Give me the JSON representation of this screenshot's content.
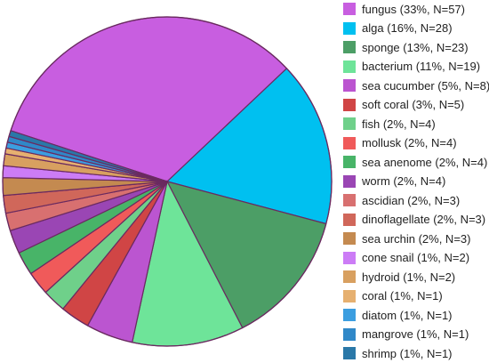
{
  "chart_data": {
    "type": "pie",
    "start_angle_deg": -162,
    "direction": "clockwise",
    "legend_position": "right",
    "slices": [
      {
        "label": "fungus (33%, N=57)",
        "value": 57,
        "color": "#c85ee0"
      },
      {
        "label": "alga (16%, N=28)",
        "value": 28,
        "color": "#00c0f0"
      },
      {
        "label": "sponge (13%, N=23)",
        "value": 23,
        "color": "#4c9e66"
      },
      {
        "label": "bacterium (11%, N=19)",
        "value": 19,
        "color": "#6ee499"
      },
      {
        "label": "sea cucumber (5%, N=8)",
        "value": 8,
        "color": "#bb55d0"
      },
      {
        "label": "soft coral (3%, N=5)",
        "value": 5,
        "color": "#d04545"
      },
      {
        "label": "fish (2%, N=4)",
        "value": 4,
        "color": "#6fd08a"
      },
      {
        "label": "mollusk (2%, N=4)",
        "value": 4,
        "color": "#f05a5a"
      },
      {
        "label": "sea anenome (2%, N=4)",
        "value": 4,
        "color": "#48b468"
      },
      {
        "label": "worm (2%, N=4)",
        "value": 4,
        "color": "#9a46b4"
      },
      {
        "label": "ascidian (2%, N=3)",
        "value": 3,
        "color": "#d87070"
      },
      {
        "label": "dinoflagellate (2%, N=3)",
        "value": 3,
        "color": "#d0675a"
      },
      {
        "label": "sea urchin (2%, N=3)",
        "value": 3,
        "color": "#c48a50"
      },
      {
        "label": "cone snail (1%, N=2)",
        "value": 2,
        "color": "#cc7cf6"
      },
      {
        "label": "hydroid (1%, N=2)",
        "value": 2,
        "color": "#d8a060"
      },
      {
        "label": "coral (1%, N=1)",
        "value": 1,
        "color": "#e6b070"
      },
      {
        "label": "diatom (1%, N=1)",
        "value": 1,
        "color": "#3c9ee0"
      },
      {
        "label": "mangrove (1%, N=1)",
        "value": 1,
        "color": "#3088c8"
      },
      {
        "label": "shrimp (1%, N=1)",
        "value": 1,
        "color": "#2a78a8"
      }
    ]
  }
}
